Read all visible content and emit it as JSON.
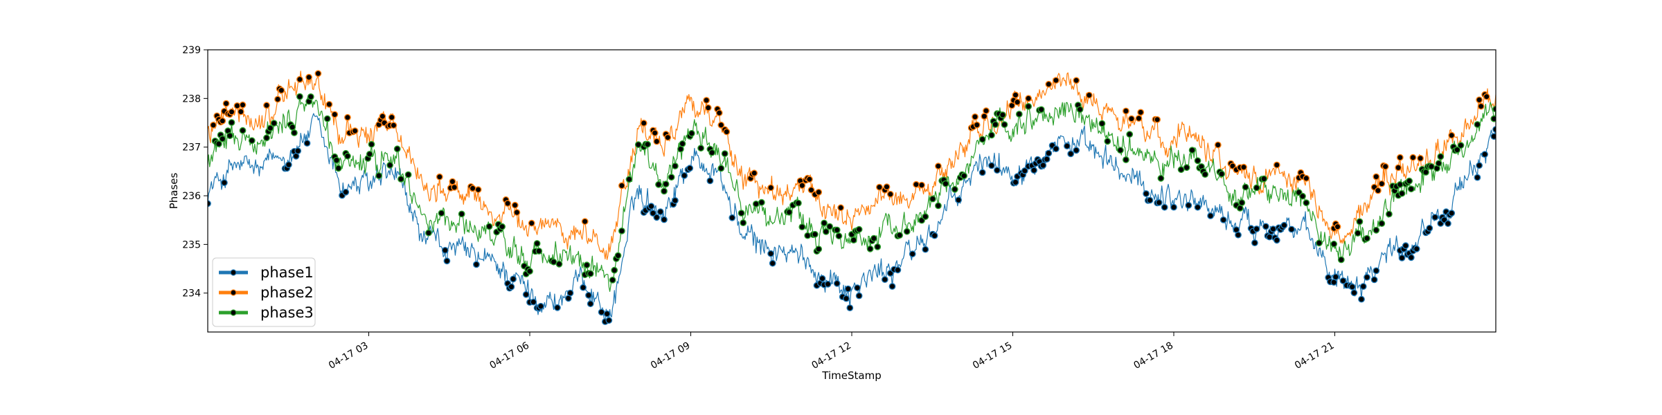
{
  "chart_data": {
    "type": "line",
    "xlabel": "TimeStamp",
    "ylabel": "Phases",
    "xlim": [
      0.0,
      24.0
    ],
    "ylim": [
      233.2,
      239.0
    ],
    "y_ticks": [
      234,
      235,
      236,
      237,
      238,
      239
    ],
    "x_ticks": [
      {
        "x": 3,
        "label": "04-17 03"
      },
      {
        "x": 6,
        "label": "04-17 06"
      },
      {
        "x": 9,
        "label": "04-17 09"
      },
      {
        "x": 12,
        "label": "04-17 12"
      },
      {
        "x": 15,
        "label": "04-17 15"
      },
      {
        "x": 18,
        "label": "04-17 18"
      },
      {
        "x": 21,
        "label": "04-17 21"
      }
    ],
    "grid": false,
    "legend_position": "lower-left",
    "markers_on_outliers": true,
    "series": [
      {
        "name": "phase1",
        "color": "#1f77b4",
        "x": [
          0.0,
          0.5,
          1.0,
          1.5,
          2.0,
          2.5,
          3.0,
          3.5,
          4.0,
          4.5,
          5.0,
          5.5,
          6.0,
          6.5,
          7.0,
          7.5,
          8.0,
          8.5,
          9.0,
          9.5,
          10.0,
          10.5,
          11.0,
          11.5,
          12.0,
          12.5,
          13.0,
          13.5,
          14.0,
          14.5,
          15.0,
          15.5,
          16.0,
          16.5,
          17.0,
          17.5,
          18.0,
          18.5,
          19.0,
          19.5,
          20.0,
          20.5,
          21.0,
          21.5,
          22.0,
          22.5,
          23.0,
          23.5,
          24.0
        ],
        "values": [
          236.1,
          236.6,
          236.5,
          236.9,
          237.4,
          236.2,
          236.2,
          236.4,
          235.1,
          234.9,
          234.7,
          234.5,
          234.0,
          233.8,
          234.3,
          233.5,
          236.1,
          235.7,
          236.8,
          236.5,
          235.1,
          234.9,
          234.7,
          234.4,
          234.1,
          234.4,
          234.7,
          235.3,
          236.0,
          236.8,
          236.5,
          237.0,
          237.2,
          236.8,
          236.5,
          236.1,
          236.0,
          235.9,
          235.5,
          235.4,
          235.5,
          235.1,
          234.4,
          234.3,
          234.9,
          235.1,
          235.8,
          236.2,
          237.5
        ]
      },
      {
        "name": "phase2",
        "color": "#ff7f0e",
        "x": [
          0.0,
          0.5,
          1.0,
          1.5,
          2.0,
          2.5,
          3.0,
          3.5,
          4.0,
          4.5,
          5.0,
          5.5,
          6.0,
          6.5,
          7.0,
          7.5,
          8.0,
          8.5,
          9.0,
          9.5,
          10.0,
          10.5,
          11.0,
          11.5,
          12.0,
          12.5,
          13.0,
          13.5,
          14.0,
          14.5,
          15.0,
          15.5,
          16.0,
          16.5,
          17.0,
          17.5,
          18.0,
          18.5,
          19.0,
          19.5,
          20.0,
          20.5,
          21.0,
          21.5,
          22.0,
          22.5,
          23.0,
          23.5,
          24.0
        ],
        "values": [
          237.3,
          237.6,
          237.5,
          238.2,
          238.4,
          237.2,
          237.3,
          237.4,
          236.3,
          236.1,
          235.9,
          235.6,
          235.3,
          235.5,
          235.2,
          234.9,
          237.4,
          236.9,
          238.1,
          237.5,
          236.4,
          236.0,
          236.2,
          235.8,
          235.6,
          235.9,
          236.0,
          236.2,
          236.9,
          237.5,
          237.7,
          238.1,
          238.4,
          237.9,
          237.6,
          237.3,
          237.2,
          237.4,
          236.5,
          236.4,
          236.5,
          236.2,
          235.1,
          235.7,
          236.3,
          236.6,
          237.0,
          237.5,
          238.1
        ]
      },
      {
        "name": "phase3",
        "color": "#2ca02c",
        "x": [
          0.0,
          0.5,
          1.0,
          1.5,
          2.0,
          2.5,
          3.0,
          3.5,
          4.0,
          4.5,
          5.0,
          5.5,
          6.0,
          6.5,
          7.0,
          7.5,
          8.0,
          8.5,
          9.0,
          9.5,
          10.0,
          10.5,
          11.0,
          11.5,
          12.0,
          12.5,
          13.0,
          13.5,
          14.0,
          14.5,
          15.0,
          15.5,
          16.0,
          16.5,
          17.0,
          17.5,
          18.0,
          18.5,
          19.0,
          19.5,
          20.0,
          20.5,
          21.0,
          21.5,
          22.0,
          22.5,
          23.0,
          23.5,
          24.0
        ],
        "values": [
          236.7,
          237.1,
          237.0,
          237.6,
          237.9,
          236.6,
          236.7,
          236.8,
          235.6,
          235.5,
          235.3,
          235.0,
          234.7,
          234.9,
          234.7,
          234.3,
          236.9,
          236.4,
          237.5,
          237.0,
          235.8,
          235.5,
          235.6,
          235.2,
          235.0,
          235.3,
          235.5,
          235.8,
          236.5,
          237.1,
          237.3,
          237.6,
          237.8,
          237.4,
          237.1,
          236.8,
          236.7,
          236.8,
          236.1,
          236.0,
          236.1,
          235.7,
          234.8,
          235.2,
          235.8,
          236.1,
          236.5,
          237.0,
          237.9
        ]
      }
    ]
  }
}
